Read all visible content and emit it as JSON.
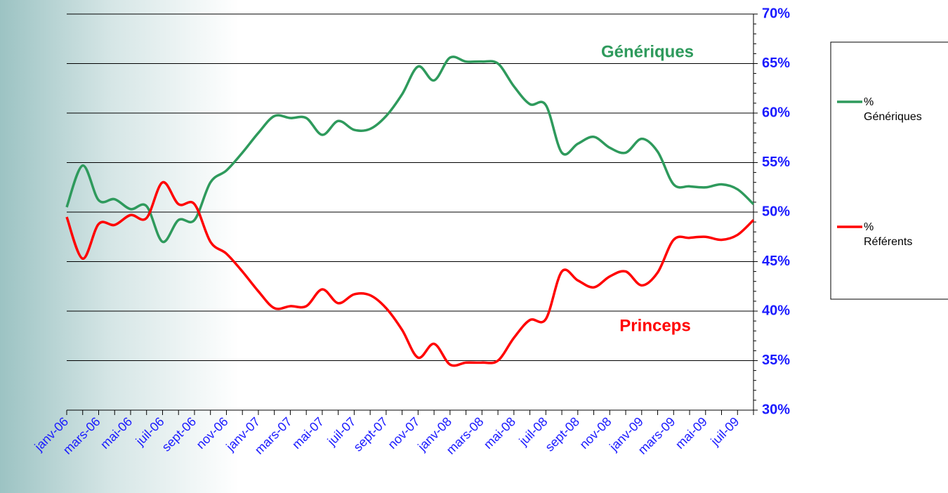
{
  "chart_data": {
    "type": "line",
    "categories": [
      "janv-06",
      null,
      "mars-06",
      null,
      "mai-06",
      null,
      "juil-06",
      null,
      "sept-06",
      null,
      "nov-06",
      null,
      "janv-07",
      null,
      "mars-07",
      null,
      "mai-07",
      null,
      "juil-07",
      null,
      "sept-07",
      null,
      "nov-07",
      null,
      "janv-08",
      null,
      "mars-08",
      null,
      "mai-08",
      null,
      "juil-08",
      null,
      "sept-08",
      null,
      "nov-08",
      null,
      "janv-09",
      null,
      "mars-09",
      null,
      "mai-09",
      null,
      "juil-09",
      null
    ],
    "series": [
      {
        "name": "% Génériques",
        "color": "#2e9a5c",
        "values": [
          50.5,
          54.7,
          51.2,
          51.3,
          50.3,
          50.6,
          47,
          49.2,
          49.2,
          53,
          54.2,
          56,
          58,
          59.7,
          59.5,
          59.5,
          57.8,
          59.2,
          58.3,
          58.4,
          59.7,
          61.9,
          64.7,
          63.3,
          65.6,
          65.2,
          65.2,
          65,
          62.7,
          60.9,
          60.8,
          56,
          56.9,
          57.6,
          56.5,
          56,
          57.4,
          56.1,
          52.8,
          52.6,
          52.5,
          52.8,
          52.3,
          50.8
        ]
      },
      {
        "name": "% Référents",
        "color": "#ff0000",
        "values": [
          49.5,
          45.3,
          48.8,
          48.7,
          49.7,
          49.4,
          53,
          50.8,
          50.8,
          47,
          45.8,
          44,
          42,
          40.3,
          40.5,
          40.5,
          42.2,
          40.8,
          41.7,
          41.6,
          40.3,
          38.1,
          35.3,
          36.7,
          34.6,
          34.8,
          34.8,
          35,
          37.3,
          39.1,
          39.2,
          44,
          43.1,
          42.4,
          43.5,
          44,
          42.6,
          43.9,
          47.2,
          47.4,
          47.5,
          47.2,
          47.7,
          49.2
        ]
      }
    ],
    "annotations": [
      {
        "text": "Génériques",
        "color": "#2e9a5c"
      },
      {
        "text": "Princeps",
        "color": "#ff0000"
      }
    ],
    "ylim": [
      30,
      70
    ],
    "yticks": [
      {
        "value": 30,
        "label": "30%"
      },
      {
        "value": 35,
        "label": "35%"
      },
      {
        "value": 40,
        "label": "40%"
      },
      {
        "value": 45,
        "label": "45%"
      },
      {
        "value": 50,
        "label": "50%"
      },
      {
        "value": 55,
        "label": "55%"
      },
      {
        "value": 60,
        "label": "60%"
      },
      {
        "value": 65,
        "label": "65%"
      },
      {
        "value": 70,
        "label": "70%"
      }
    ],
    "grid": true,
    "legend": "right"
  }
}
